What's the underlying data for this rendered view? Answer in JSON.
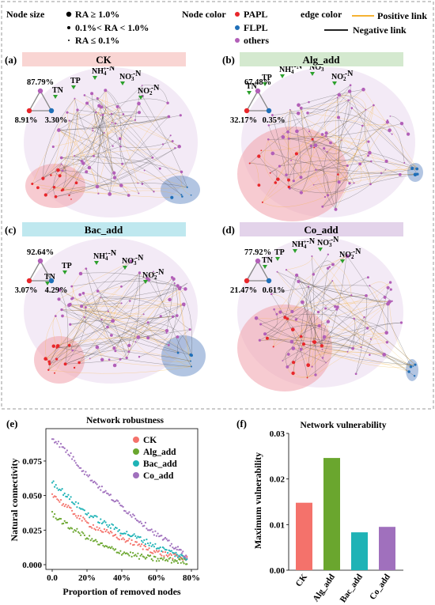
{
  "legend": {
    "node_size_title": "Node size",
    "size_items": [
      "RA ≥ 1.0%",
      "0.1%< RA < 1.0%",
      "RA ≤ 0.1%"
    ],
    "node_color_title": "Node color",
    "color_items": [
      {
        "label": "PAPL",
        "color": "#e8262b"
      },
      {
        "label": "FLPL",
        "color": "#1f6fb8"
      },
      {
        "label": "others",
        "color": "#b25fb8"
      }
    ],
    "edge_color_title": "edge color",
    "edge_items": [
      {
        "label": "Positive link",
        "color": "#f5b233"
      },
      {
        "label": "Negative link",
        "color": "#222222"
      }
    ]
  },
  "networks": [
    {
      "panel": "(a)",
      "title": "CK",
      "title_bg": "#f9d5d3",
      "top_pct": "87.79%",
      "left_pct": "8.91%",
      "right_pct": "3.30%"
    },
    {
      "panel": "(b)",
      "title": "Alg_add",
      "title_bg": "#d4e9cf",
      "top_pct": "67.48%",
      "left_pct": "32.17%",
      "right_pct": "0.35%"
    },
    {
      "panel": "(c)",
      "title": "Bac_add",
      "title_bg": "#bfe8ef",
      "top_pct": "92.64%",
      "left_pct": "3.07%",
      "right_pct": "4.29%"
    },
    {
      "panel": "(d)",
      "title": "Co_add",
      "title_bg": "#e3d3ea",
      "top_pct": "77.92%",
      "left_pct": "21.47%",
      "right_pct": "0.61%"
    }
  ],
  "nutrients": {
    "tn": "TN",
    "tp": "TP",
    "nh4_base": "NH",
    "nh4_sub": "4",
    "nh4_sup": "+",
    "nh4_tail": "-N",
    "no3_base": "NO",
    "no3_sub": "3",
    "no3_sup": "-",
    "no3_tail": "-N",
    "no2_base": "NO",
    "no2_sub": "2",
    "no2_sup": "-",
    "no2_tail": "-N"
  },
  "robustness": {
    "panel": "(e)",
    "chart_data": {
      "type": "scatter",
      "title": "Network robustness",
      "xlabel": "Proportion of removed nodes",
      "ylabel": "Natural connectivity",
      "xticks": [
        "0.0",
        "20%",
        "40%",
        "60%",
        "80%"
      ],
      "yticks": [
        "0.000",
        "0.025",
        "0.050",
        "0.075"
      ],
      "xlim": [
        0,
        0.8
      ],
      "ylim": [
        0,
        0.095
      ],
      "legend_position": "top-right",
      "series": [
        {
          "name": "CK",
          "color": "#f4726b",
          "x": [
            0.0,
            0.1,
            0.2,
            0.3,
            0.4,
            0.5,
            0.6,
            0.7,
            0.78
          ],
          "y": [
            0.051,
            0.04,
            0.03,
            0.024,
            0.019,
            0.014,
            0.009,
            0.006,
            0.004
          ]
        },
        {
          "name": "Alg_add",
          "color": "#6aa62e",
          "x": [
            0.0,
            0.1,
            0.2,
            0.3,
            0.4,
            0.5,
            0.6,
            0.7,
            0.78
          ],
          "y": [
            0.037,
            0.027,
            0.02,
            0.013,
            0.009,
            0.006,
            0.004,
            0.003,
            0.002
          ]
        },
        {
          "name": "Bac_add",
          "color": "#1fb3b6",
          "x": [
            0.0,
            0.1,
            0.2,
            0.3,
            0.4,
            0.5,
            0.6,
            0.7,
            0.78
          ],
          "y": [
            0.06,
            0.048,
            0.037,
            0.03,
            0.024,
            0.019,
            0.013,
            0.008,
            0.004
          ]
        },
        {
          "name": "Co_add",
          "color": "#a070bd",
          "x": [
            0.0,
            0.1,
            0.2,
            0.3,
            0.4,
            0.5,
            0.6,
            0.7,
            0.78
          ],
          "y": [
            0.092,
            0.08,
            0.065,
            0.053,
            0.042,
            0.032,
            0.022,
            0.013,
            0.006
          ]
        }
      ]
    }
  },
  "vulnerability": {
    "panel": "(f)",
    "chart_data": {
      "type": "bar",
      "title": "Network vulnerability",
      "xlabel": "",
      "ylabel": "Maximum vulnerability",
      "categories": [
        "CK",
        "Alg_add",
        "Bac_add",
        "Co_add"
      ],
      "values": [
        0.0148,
        0.0246,
        0.0083,
        0.0095
      ],
      "colors": [
        "#f4726b",
        "#6aa62e",
        "#1fb3b6",
        "#a070bd"
      ],
      "yticks": [
        "0.00",
        "0.01",
        "0.02",
        "0.03"
      ],
      "ylim": [
        0,
        0.03
      ]
    }
  }
}
